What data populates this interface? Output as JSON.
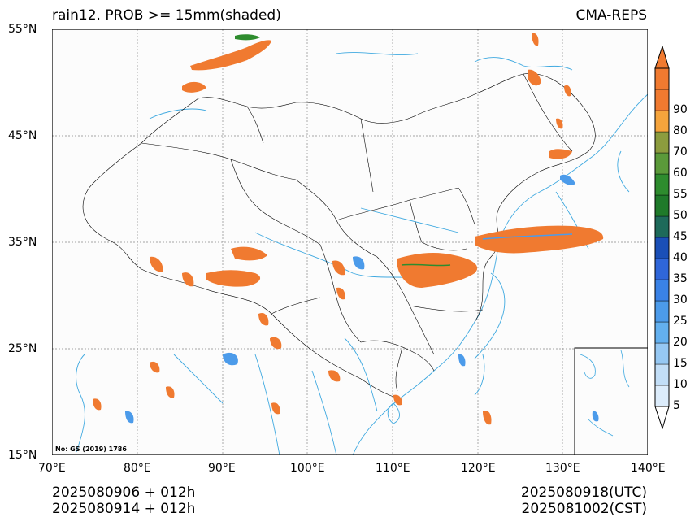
{
  "title_left": "rain12. PROB >= 15mm(shaded)",
  "title_right": "CMA-REPS",
  "lat_ticks": [
    "55°N",
    "45°N",
    "35°N",
    "25°N",
    "15°N"
  ],
  "lon_ticks": [
    "70°E",
    "80°E",
    "90°E",
    "100°E",
    "110°E",
    "120°E",
    "130°E",
    "140°E"
  ],
  "map_extent": {
    "lon": [
      70,
      140
    ],
    "lat": [
      15,
      55
    ]
  },
  "map_note": "No: GS (2019) 1786",
  "footer_left": [
    "2025080906  +  012h",
    "2025080914  +  012h"
  ],
  "footer_right": [
    "2025080918(UTC)",
    "2025081002(CST)"
  ],
  "colorbar": {
    "levels": [
      "5",
      "10",
      "15",
      "20",
      "25",
      "30",
      "35",
      "40",
      "45",
      "50",
      "55",
      "60",
      "70",
      "80",
      "90"
    ],
    "colors": [
      "#ffffff",
      "#dcecfb",
      "#c2def7",
      "#96c8f3",
      "#63b0ef",
      "#4c9bea",
      "#3a82e6",
      "#2f66d9",
      "#1a4fb7",
      "#1e6a5a",
      "#1f7a2a",
      "#2e8c2e",
      "#5b9a3a",
      "#8c9c3e",
      "#f5a43c",
      "#f07a30",
      "#f07a30"
    ]
  },
  "shading_colors": {
    "high": "#f07a30",
    "mid": "#2e8c2e",
    "low": "#4c9bea",
    "coast": "#3fa9e0",
    "border": "#000000"
  }
}
